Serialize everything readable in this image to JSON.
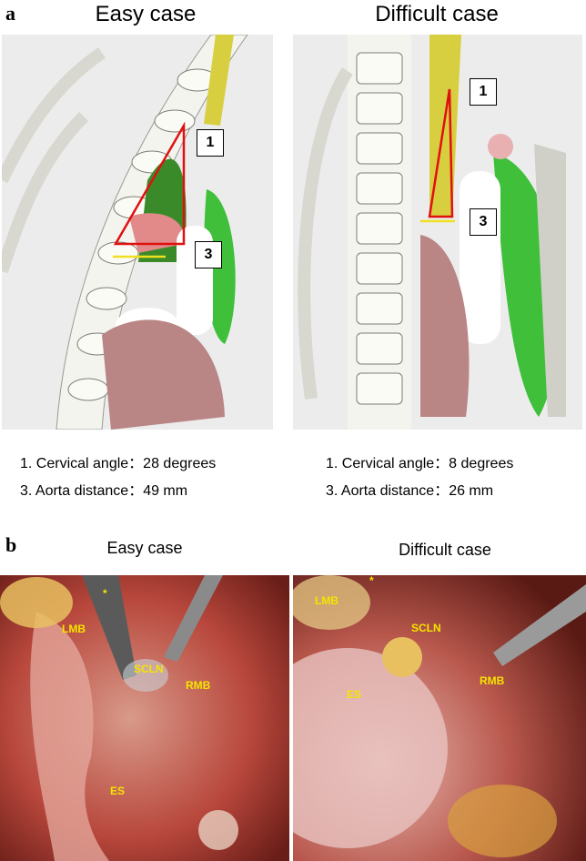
{
  "panel_a": {
    "label": "a",
    "cases": [
      {
        "title": "Easy case",
        "markers": [
          "1",
          "3"
        ],
        "measurements": [
          "1. Cervical angle：28 degrees",
          "3. Aorta distance：49 mm"
        ]
      },
      {
        "title": "Difficult case",
        "markers": [
          "1",
          "3"
        ],
        "measurements": [
          "1. Cervical angle：8 degrees",
          "3. Aorta distance：26 mm"
        ]
      }
    ]
  },
  "panel_b": {
    "label": "b",
    "cases": [
      {
        "title": "Easy case",
        "annotations": [
          "*",
          "LMB",
          "SCLN",
          "RMB",
          "ES"
        ]
      },
      {
        "title": "Difficult case",
        "annotations": [
          "LMB",
          "*",
          "SCLN",
          "RMB",
          "ES"
        ]
      }
    ]
  }
}
